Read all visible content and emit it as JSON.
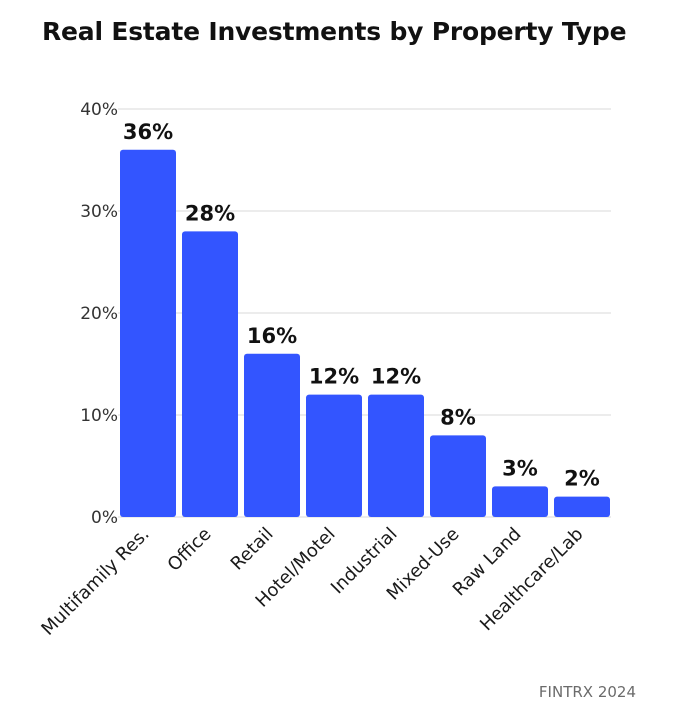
{
  "chart_data": {
    "type": "bar",
    "title": "Real Estate Investments by Property Type",
    "categories": [
      "Multifamily Res.",
      "Office",
      "Retail",
      "Hotel/Motel",
      "Industrial",
      "Mixed-Use",
      "Raw Land",
      "Healthcare/Lab"
    ],
    "values": [
      36,
      28,
      16,
      12,
      12,
      8,
      3,
      2
    ],
    "data_labels": [
      "36%",
      "28%",
      "16%",
      "12%",
      "12%",
      "8%",
      "3%",
      "2%"
    ],
    "y_ticks": [
      0,
      10,
      20,
      30,
      40
    ],
    "y_tick_labels": [
      "0%",
      "10%",
      "20%",
      "30%",
      "40%"
    ],
    "ylim": [
      0,
      40
    ],
    "xlabel": "",
    "ylabel": "",
    "grid": true,
    "legend": false,
    "bar_color": "#3355ff",
    "grid_color": "#d9d9d9",
    "source": "FINTRX 2024"
  }
}
